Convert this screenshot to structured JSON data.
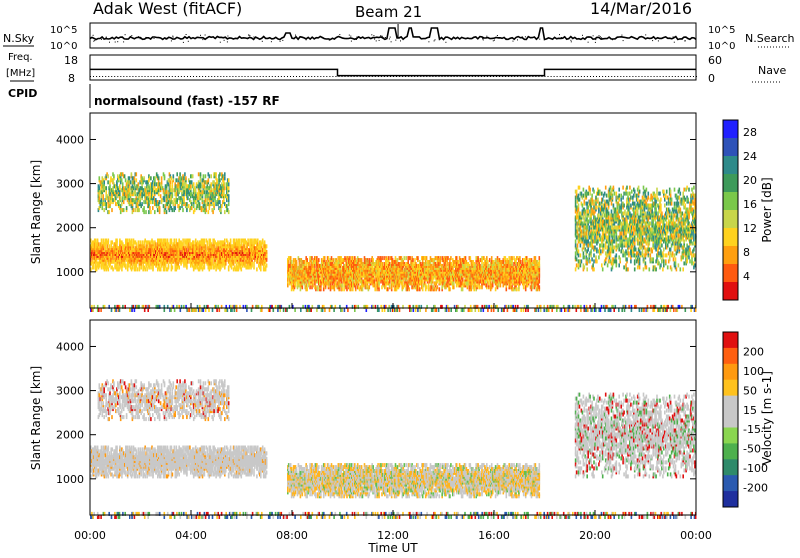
{
  "header": {
    "station": "Adak West (fitACF)",
    "beam": "Beam 21",
    "date": "14/Mar/2016"
  },
  "panels": {
    "nsky_label": "N.Sky",
    "nsky_ticks": [
      "10^5",
      "10^0"
    ],
    "nsearch_label": "N.Search",
    "freq_label": "Freq.",
    "freq_unit": "[MHz]",
    "freq_ticks": [
      "18",
      "8"
    ],
    "nave_label": "Nave",
    "nave_ticks": [
      "60",
      "0"
    ],
    "cpid_label": "CPID",
    "cpid_text": "normalsound (fast) -157 RF"
  },
  "axes": {
    "ylabel": "Slant Range [km]",
    "xlabel": "Time UT",
    "xticks": [
      "00:00",
      "04:00",
      "08:00",
      "12:00",
      "16:00",
      "20:00",
      "00:00"
    ],
    "yticks": [
      "1000",
      "2000",
      "3000",
      "4000"
    ],
    "xlim_hours": [
      0,
      24
    ],
    "ylim_km": [
      180,
      4600
    ]
  },
  "colorbars": {
    "power": {
      "label": "Power [dB]",
      "ticks": [
        "4",
        "8",
        "12",
        "16",
        "20",
        "24",
        "28"
      ],
      "colors": [
        "#2020ff",
        "#2e52b8",
        "#2e8a8a",
        "#3d9a5a",
        "#7ac84a",
        "#c8d64a",
        "#ffd21e",
        "#ff9f0f",
        "#ff5a0f",
        "#e10f0f"
      ]
    },
    "velocity": {
      "label": "Velocity [m s-1]",
      "ticks": [
        "200",
        "100",
        "50",
        "15",
        "-15",
        "-50",
        "-100",
        "-200"
      ],
      "colors": [
        "#1f2f9e",
        "#2a5ab0",
        "#2e8a6a",
        "#4db04d",
        "#8ad650",
        "#c8c8c8",
        "#c8c8c8",
        "#ffc21e",
        "#ff9a10",
        "#ff5f10",
        "#e01010"
      ]
    }
  },
  "chart_data": {
    "type": "heatmap",
    "x_unit": "hours UT",
    "y_unit": "km",
    "echo_regions": [
      {
        "name": "early-band-lower",
        "t": [
          0.0,
          7.0
        ],
        "range_km": [
          1100,
          1800
        ]
      },
      {
        "name": "early-band-upper",
        "t": [
          0.3,
          5.5
        ],
        "range_km": [
          2400,
          3300
        ]
      },
      {
        "name": "midday-band",
        "t": [
          7.8,
          17.8
        ],
        "range_km": [
          650,
          1400
        ]
      },
      {
        "name": "late-band",
        "t": [
          19.2,
          24.0
        ],
        "range_km": [
          1100,
          3000
        ]
      },
      {
        "name": "near-range-clutter",
        "t": [
          0.0,
          24.0
        ],
        "range_km": [
          180,
          320
        ]
      }
    ],
    "nsky_level": 0.25,
    "freq_mhz": [
      {
        "t": [
          0.0,
          9.8
        ],
        "value": 11.5
      },
      {
        "t": [
          9.8,
          18.0
        ],
        "value": 8.3
      },
      {
        "t": [
          18.0,
          24.0
        ],
        "value": 11.5
      }
    ]
  }
}
